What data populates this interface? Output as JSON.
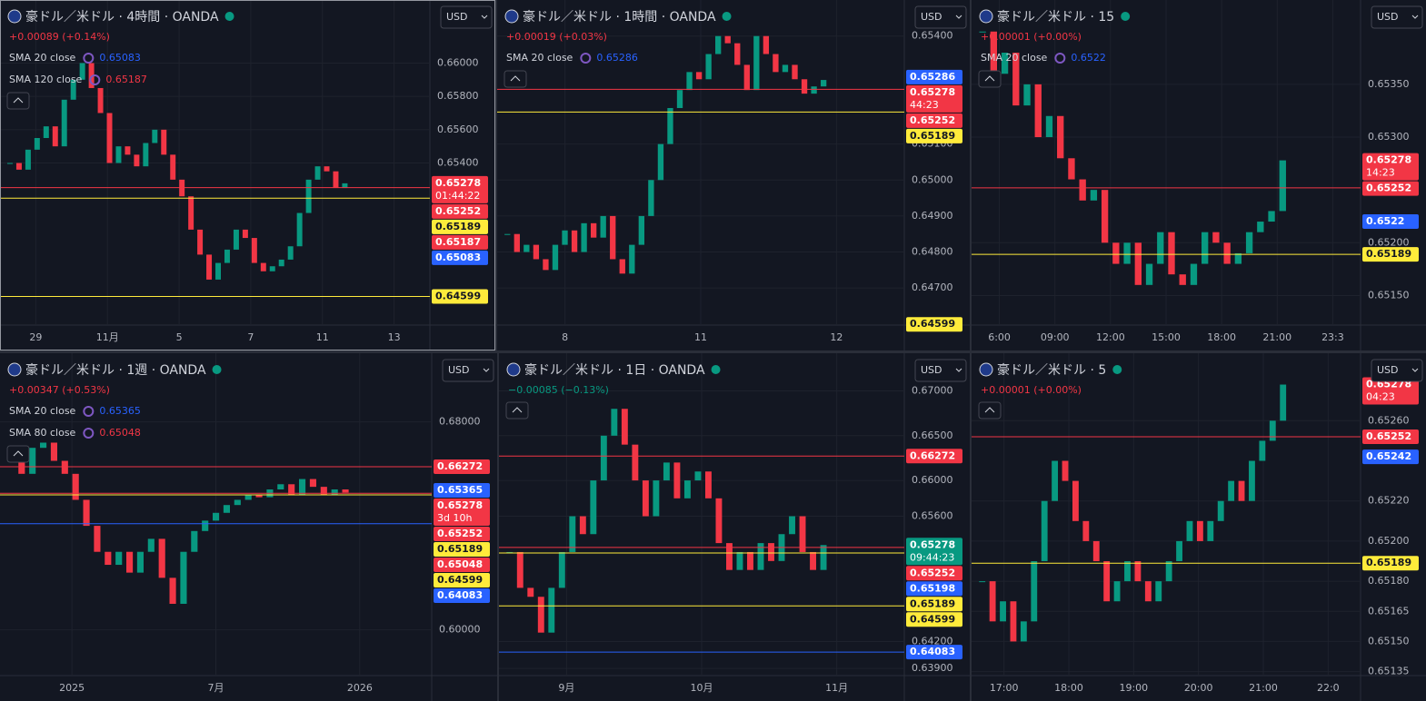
{
  "panels": [
    {
      "symbol": "豪ドル／米ドル · 4時間 · OANDA",
      "currency": "USD",
      "change": "+0.00089 (+0.14%)",
      "indicators": [
        {
          "label": "SMA 20 close",
          "value": 0.65083,
          "color": "#2962ff"
        },
        {
          "label": "SMA 120 close",
          "value": 0.65187,
          "color": "#f23645"
        }
      ],
      "ylim": [
        0.64427,
        0.66335
      ],
      "yticks": [
        {
          "value": 0.66,
          "label": "0.66000"
        },
        {
          "value": 0.658,
          "label": "0.65800"
        },
        {
          "value": 0.656,
          "label": "0.65600"
        },
        {
          "value": 0.654,
          "label": "0.65400"
        }
      ],
      "time_ticks": [
        "29",
        "11月",
        "5",
        "7",
        "11",
        "13"
      ],
      "badges": [
        {
          "value": 0.65278,
          "sub": "01:44:22",
          "color": "#f23645",
          "line": false
        },
        {
          "value": 0.65252,
          "color": "#f23645",
          "line": true
        },
        {
          "value": 0.65189,
          "color": "#ffeb3b",
          "line": true
        },
        {
          "value": 0.65187,
          "color": "#f23645",
          "line": false
        },
        {
          "value": 0.65083,
          "color": "#2962ff",
          "line": false
        },
        {
          "value": 0.64599,
          "color": "#ffeb3b",
          "line": true
        }
      ],
      "closes": [
        0.654,
        0.6536,
        0.6548,
        0.6555,
        0.6562,
        0.655,
        0.6578,
        0.659,
        0.66,
        0.6585,
        0.657,
        0.654,
        0.655,
        0.6545,
        0.6538,
        0.6552,
        0.656,
        0.6545,
        0.653,
        0.652,
        0.65,
        0.6485,
        0.647,
        0.648,
        0.6488,
        0.65,
        0.6495,
        0.648,
        0.6475,
        0.6478,
        0.6482,
        0.649,
        0.651,
        0.653,
        0.6538,
        0.6535,
        0.6525,
        0.65278
      ]
    },
    {
      "symbol": "豪ドル／米ドル · 1時間 · OANDA",
      "currency": "USD",
      "change": "+0.00019 (+0.03%)",
      "indicators": [
        {
          "label": "SMA 20 close",
          "value": 0.65286,
          "color": "#2962ff"
        }
      ],
      "ylim": [
        0.64597,
        0.6548
      ],
      "yticks": [
        {
          "value": 0.654,
          "label": "0.65400"
        },
        {
          "value": 0.651,
          "label": "0.65100"
        },
        {
          "value": 0.65,
          "label": "0.65000"
        },
        {
          "value": 0.649,
          "label": "0.64900"
        },
        {
          "value": 0.648,
          "label": "0.64800"
        },
        {
          "value": 0.647,
          "label": "0.64700"
        }
      ],
      "time_ticks": [
        "8",
        "11",
        "12"
      ],
      "badges": [
        {
          "value": 0.65286,
          "color": "#2962ff",
          "line": false
        },
        {
          "value": 0.65278,
          "sub": "44:23",
          "color": "#f23645",
          "line": false
        },
        {
          "value": 0.65252,
          "color": "#f23645",
          "line": true
        },
        {
          "value": 0.65189,
          "color": "#ffeb3b",
          "line": true
        },
        {
          "value": 0.64599,
          "color": "#ffeb3b",
          "line": false
        }
      ],
      "closes": [
        0.6485,
        0.648,
        0.6482,
        0.6478,
        0.6475,
        0.6482,
        0.6486,
        0.648,
        0.6488,
        0.6484,
        0.649,
        0.6478,
        0.6474,
        0.6482,
        0.649,
        0.65,
        0.651,
        0.652,
        0.6525,
        0.653,
        0.6528,
        0.6535,
        0.654,
        0.6538,
        0.6532,
        0.6525,
        0.654,
        0.6535,
        0.653,
        0.6532,
        0.6528,
        0.6524,
        0.6526,
        0.65278
      ]
    },
    {
      "symbol": "豪ドル／米ドル · 15",
      "currency": "USD",
      "change": "+0.00001 (+0.00%)",
      "indicators": [
        {
          "label": "SMA 20 close",
          "value": 0.6522,
          "color": "#2962ff"
        }
      ],
      "ylim": [
        0.65122,
        0.65423
      ],
      "yticks": [
        {
          "value": 0.6535,
          "label": "0.65350"
        },
        {
          "value": 0.653,
          "label": "0.65300"
        },
        {
          "value": 0.652,
          "label": "0.65200"
        },
        {
          "value": 0.6515,
          "label": "0.65150"
        }
      ],
      "time_ticks": [
        "6:00",
        "09:00",
        "12:00",
        "15:00",
        "18:00",
        "21:00",
        "23:3"
      ],
      "badges": [
        {
          "value": 0.65278,
          "sub": "14:23",
          "color": "#f23645",
          "line": false
        },
        {
          "value": 0.65252,
          "color": "#f23645",
          "line": true
        },
        {
          "value": 0.6522,
          "color": "#2962ff",
          "line": false
        },
        {
          "value": 0.65189,
          "color": "#ffeb3b",
          "line": true
        }
      ],
      "closes": [
        0.654,
        0.6536,
        0.6538,
        0.6533,
        0.6535,
        0.653,
        0.6532,
        0.6528,
        0.6526,
        0.6524,
        0.6525,
        0.652,
        0.6518,
        0.652,
        0.6516,
        0.6518,
        0.6521,
        0.6517,
        0.6516,
        0.6518,
        0.6521,
        0.652,
        0.6518,
        0.6519,
        0.6521,
        0.6522,
        0.6523,
        0.65278
      ]
    },
    {
      "symbol": "豪ドル／米ドル · 1週 · OANDA",
      "currency": "USD",
      "change": "+0.00347 (+0.53%)",
      "indicators": [
        {
          "label": "SMA 20 close",
          "value": 0.65365,
          "color": "#2962ff"
        },
        {
          "label": "SMA 80 close",
          "value": 0.65048,
          "color": "#f23645"
        }
      ],
      "ylim": [
        0.5824,
        0.7036
      ],
      "yticks": [
        {
          "value": 0.68,
          "label": "0.68000"
        },
        {
          "value": 0.6,
          "label": "0.60000"
        }
      ],
      "time_ticks": [
        "2025",
        "7月",
        "2026"
      ],
      "badges": [
        {
          "value": 0.66272,
          "color": "#f23645",
          "line": true
        },
        {
          "value": 0.65365,
          "color": "#2962ff",
          "line": false
        },
        {
          "value": 0.65278,
          "sub": "3d 10h",
          "color": "#f23645",
          "line": false
        },
        {
          "value": 0.65252,
          "color": "#f23645",
          "line": true
        },
        {
          "value": 0.65189,
          "color": "#ffeb3b",
          "line": true
        },
        {
          "value": 0.65048,
          "color": "#f23645",
          "line": false
        },
        {
          "value": 0.64599,
          "color": "#ffeb3b",
          "line": false
        },
        {
          "value": 0.64083,
          "color": "#2962ff",
          "line": true
        }
      ],
      "closes": [
        0.665,
        0.66,
        0.67,
        0.672,
        0.665,
        0.66,
        0.65,
        0.64,
        0.63,
        0.625,
        0.63,
        0.622,
        0.63,
        0.635,
        0.62,
        0.61,
        0.63,
        0.638,
        0.642,
        0.645,
        0.648,
        0.65,
        0.652,
        0.651,
        0.654,
        0.656,
        0.652,
        0.658,
        0.655,
        0.652,
        0.654,
        0.65278
      ]
    },
    {
      "symbol": "豪ドル／米ドル · 1日 · OANDA",
      "currency": "USD",
      "change": "−0.00085 (−0.13%)",
      "indicators": [],
      "ylim": [
        0.6382,
        0.6734
      ],
      "yticks": [
        {
          "value": 0.67,
          "label": "0.67000"
        },
        {
          "value": 0.665,
          "label": "0.66500"
        },
        {
          "value": 0.66,
          "label": "0.66000"
        },
        {
          "value": 0.656,
          "label": "0.65600"
        },
        {
          "value": 0.642,
          "label": "0.64200"
        },
        {
          "value": 0.639,
          "label": "0.63900"
        }
      ],
      "time_ticks": [
        "9月",
        "10月",
        "11月"
      ],
      "badges": [
        {
          "value": 0.66272,
          "color": "#f23645",
          "line": true
        },
        {
          "value": 0.65278,
          "sub": "09:44:23",
          "color": "#089981",
          "line": false
        },
        {
          "value": 0.65252,
          "color": "#f23645",
          "line": true
        },
        {
          "value": 0.65198,
          "color": "#2962ff",
          "line": false
        },
        {
          "value": 0.65189,
          "color": "#ffeb3b",
          "line": true
        },
        {
          "value": 0.64599,
          "color": "#ffeb3b",
          "line": true
        },
        {
          "value": 0.64083,
          "color": "#2962ff",
          "line": true
        }
      ],
      "closes": [
        0.652,
        0.648,
        0.647,
        0.643,
        0.648,
        0.652,
        0.656,
        0.654,
        0.66,
        0.665,
        0.668,
        0.664,
        0.66,
        0.656,
        0.66,
        0.662,
        0.658,
        0.66,
        0.661,
        0.658,
        0.653,
        0.65,
        0.652,
        0.65,
        0.653,
        0.651,
        0.654,
        0.656,
        0.652,
        0.65,
        0.65278
      ]
    },
    {
      "symbol": "豪ドル／米ドル · 5",
      "currency": "USD",
      "change": "+0.00001 (+0.00%)",
      "indicators": [],
      "ylim": [
        0.65133,
        0.6529
      ],
      "yticks": [
        {
          "value": 0.6526,
          "label": "0.65260"
        },
        {
          "value": 0.6522,
          "label": "0.65220"
        },
        {
          "value": 0.652,
          "label": "0.65200"
        },
        {
          "value": 0.6518,
          "label": "0.65180"
        },
        {
          "value": 0.65165,
          "label": "0.65165"
        },
        {
          "value": 0.6515,
          "label": "0.65150"
        },
        {
          "value": 0.65135,
          "label": "0.65135"
        }
      ],
      "time_ticks": [
        "17:00",
        "18:00",
        "19:00",
        "20:00",
        "21:00",
        "22:0"
      ],
      "badges": [
        {
          "value": 0.65278,
          "sub": "04:23",
          "color": "#f23645",
          "line": false
        },
        {
          "value": 0.65252,
          "color": "#f23645",
          "line": true
        },
        {
          "value": 0.65242,
          "color": "#2962ff",
          "line": false
        },
        {
          "value": 0.65189,
          "color": "#ffeb3b",
          "line": true
        }
      ],
      "closes": [
        0.6518,
        0.6516,
        0.6517,
        0.6515,
        0.6516,
        0.6519,
        0.6522,
        0.6524,
        0.6523,
        0.6521,
        0.652,
        0.6519,
        0.6517,
        0.6518,
        0.6519,
        0.6518,
        0.6517,
        0.6518,
        0.6519,
        0.652,
        0.6521,
        0.652,
        0.6521,
        0.6522,
        0.6523,
        0.6522,
        0.6524,
        0.6525,
        0.6526,
        0.65278
      ]
    }
  ]
}
